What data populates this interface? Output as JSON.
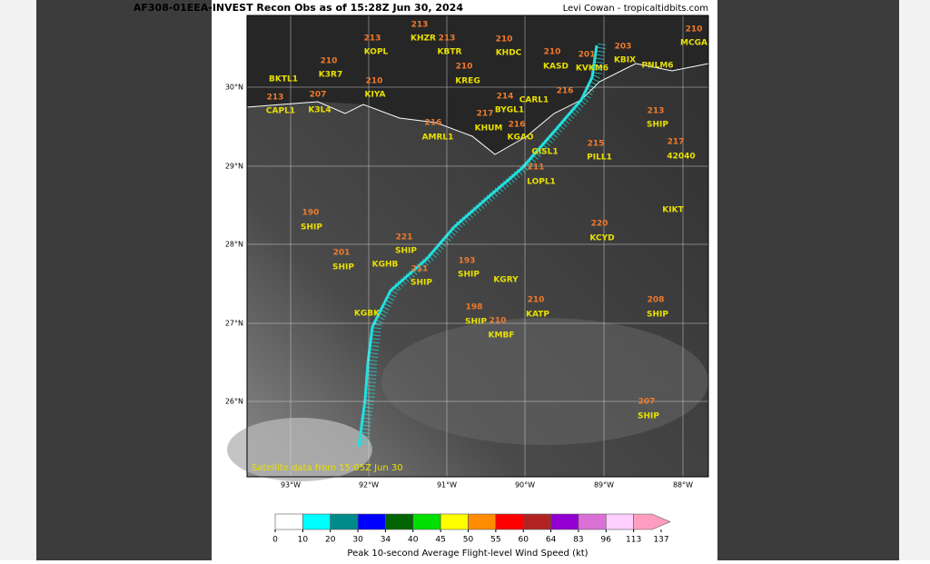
{
  "header": {
    "title": "AF308-01EEA-INVEST Recon Obs as of 15:28Z Jun 30, 2024",
    "credit": "Levi Cowan - tropicaltidbits.com"
  },
  "map": {
    "satellite_note": "Satellite data from 15:05Z Jun 30",
    "lon_ticks": [
      "93°W",
      "92°W",
      "91°W",
      "90°W",
      "89°W",
      "88°W"
    ],
    "lat_ticks": [
      "30°N",
      "29°N",
      "28°N",
      "27°N",
      "26°N"
    ],
    "stations": [
      {
        "name": "KOPL",
        "value": 213
      },
      {
        "name": "KHZR",
        "value": 213
      },
      {
        "name": "KBTR",
        "value": 213
      },
      {
        "name": "KHDC",
        "value": 210
      },
      {
        "name": "K3R7",
        "value": 210
      },
      {
        "name": "KREG",
        "value": 210
      },
      {
        "name": "KASD",
        "value": 210
      },
      {
        "name": "KBIX",
        "value": 203
      },
      {
        "name": "KVKM6",
        "value": 201
      },
      {
        "name": "PNLM6"
      },
      {
        "name": "MCGA",
        "value": 210
      },
      {
        "name": "BKTL1"
      },
      {
        "name": "KIYA",
        "value": 210
      },
      {
        "name": "CAPL1",
        "value": 213
      },
      {
        "name": "K3L4",
        "value": 207
      },
      {
        "name": "BYGL1",
        "value": 214
      },
      {
        "name": "CARL1",
        "value": 216
      },
      {
        "name": "AMRL1",
        "value": 216
      },
      {
        "name": "KHUM",
        "value": 217
      },
      {
        "name": "KGAO",
        "value": 216
      },
      {
        "name": "SHIP",
        "value": 213
      },
      {
        "name": "42040",
        "value": 217
      },
      {
        "name": "PILL1",
        "value": 215
      },
      {
        "name": "GISL1"
      },
      {
        "name": "LOPL1",
        "value": 211
      },
      {
        "name": "SHIP",
        "value": 190
      },
      {
        "name": "SHIP",
        "value": 221
      },
      {
        "name": "KCYD",
        "value": 220
      },
      {
        "name": "KIKT"
      },
      {
        "name": "SHIP",
        "value": 201
      },
      {
        "name": "KGHB"
      },
      {
        "name": "SHIP",
        "value": 193
      },
      {
        "name": "SHIP",
        "value": 211
      },
      {
        "name": "KGRY"
      },
      {
        "name": "KATP",
        "value": 210
      },
      {
        "name": "SHIP",
        "value": 208
      },
      {
        "name": "KGBK"
      },
      {
        "name": "SHIP",
        "value": 198
      },
      {
        "name": "KMBF",
        "value": 210
      },
      {
        "name": "SHIP",
        "value": 207
      }
    ]
  },
  "colorbar": {
    "label": "Peak 10-second Average Flight-level Wind Speed (kt)",
    "ticks": [
      0,
      10,
      20,
      30,
      34,
      40,
      45,
      50,
      55,
      60,
      64,
      83,
      96,
      113,
      137
    ],
    "colors": [
      "#ffffff",
      "#00ffff",
      "#008b8b",
      "#0000ff",
      "#006400",
      "#00e000",
      "#ffff00",
      "#ff8c00",
      "#ff0000",
      "#b22222",
      "#9400d3",
      "#da70d6",
      "#ffd0ff",
      "#ff9ec0"
    ]
  }
}
